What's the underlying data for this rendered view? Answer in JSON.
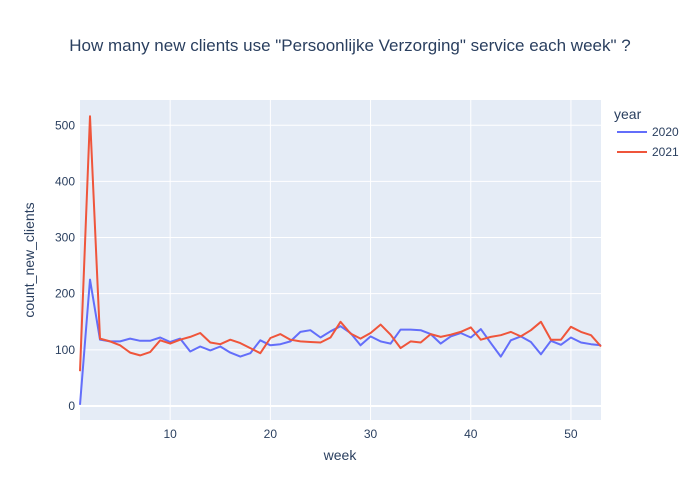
{
  "chart_data": {
    "type": "line",
    "title": "How many new clients use \"Persoonlijke Verzorging\" service each week\" ?",
    "xlabel": "week",
    "ylabel": "count_new_clients",
    "xlim": [
      1,
      53
    ],
    "ylim": [
      -25,
      545
    ],
    "x_ticks": [
      "10",
      "20",
      "30",
      "40",
      "50"
    ],
    "y_ticks": [
      "0",
      "100",
      "200",
      "300",
      "400",
      "500"
    ],
    "grid": true,
    "legend_title": "year",
    "legend_position": "top-right",
    "x": [
      1,
      2,
      3,
      4,
      5,
      6,
      7,
      8,
      9,
      10,
      11,
      12,
      13,
      14,
      15,
      16,
      17,
      18,
      19,
      20,
      21,
      22,
      23,
      24,
      25,
      26,
      27,
      28,
      29,
      30,
      31,
      32,
      33,
      34,
      35,
      36,
      37,
      38,
      39,
      40,
      41,
      42,
      43,
      44,
      45,
      46,
      47,
      48,
      49,
      50,
      51,
      52,
      53
    ],
    "series": [
      {
        "name": "2020",
        "color": "#636efa",
        "values": [
          2,
          225,
          118,
          115,
          115,
          120,
          116,
          116,
          122,
          114,
          120,
          97,
          106,
          99,
          106,
          95,
          88,
          94,
          117,
          108,
          110,
          115,
          132,
          135,
          122,
          133,
          142,
          130,
          108,
          124,
          115,
          111,
          136,
          136,
          135,
          128,
          111,
          124,
          130,
          122,
          137,
          112,
          88,
          117,
          124,
          114,
          92,
          116,
          109,
          122,
          113,
          110,
          108
        ]
      },
      {
        "name": "2021",
        "color": "#ef553b",
        "values": [
          62,
          516,
          120,
          115,
          108,
          95,
          90,
          96,
          117,
          111,
          118,
          123,
          130,
          113,
          110,
          118,
          112,
          103,
          94,
          121,
          128,
          118,
          115,
          114,
          113,
          122,
          150,
          129,
          120,
          130,
          145,
          127,
          103,
          115,
          113,
          128,
          123,
          127,
          132,
          140,
          118,
          123,
          126,
          132,
          124,
          135,
          150,
          118,
          118,
          141,
          132,
          126,
          106
        ]
      }
    ]
  }
}
